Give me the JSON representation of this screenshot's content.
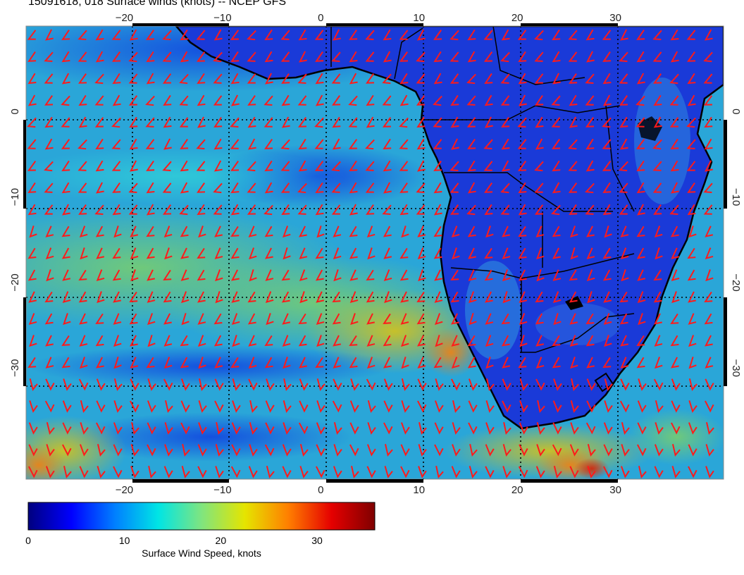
{
  "title": "15091618, 018 Surface winds (knots) -- NCEP GFS",
  "map": {
    "lon_range": [
      -30,
      41
    ],
    "lat_range": [
      -43,
      10
    ],
    "lon_ticks": [
      -20,
      -10,
      0,
      10,
      20,
      30
    ],
    "lat_ticks": [
      0,
      -10,
      -20,
      -30
    ],
    "lon_tick_labels": [
      "−20",
      "−10",
      "0",
      "10",
      "20",
      "30"
    ],
    "lat_tick_labels": [
      "0",
      "−10",
      "−20",
      "−30"
    ],
    "graticule": "dotted",
    "barb_color": "#ff1a1a",
    "coastline_color": "#000000"
  },
  "colorbar": {
    "label": "Surface Wind Speed, knots",
    "tick_values": [
      0,
      10,
      20,
      30
    ],
    "tick_labels": [
      "0",
      "10",
      "20",
      "30"
    ],
    "range": [
      0,
      36
    ],
    "colors": [
      "#00007f",
      "#0000ff",
      "#007fff",
      "#00e5e5",
      "#7fe57f",
      "#e5e500",
      "#ff7f00",
      "#e50000",
      "#7f0000"
    ]
  }
}
